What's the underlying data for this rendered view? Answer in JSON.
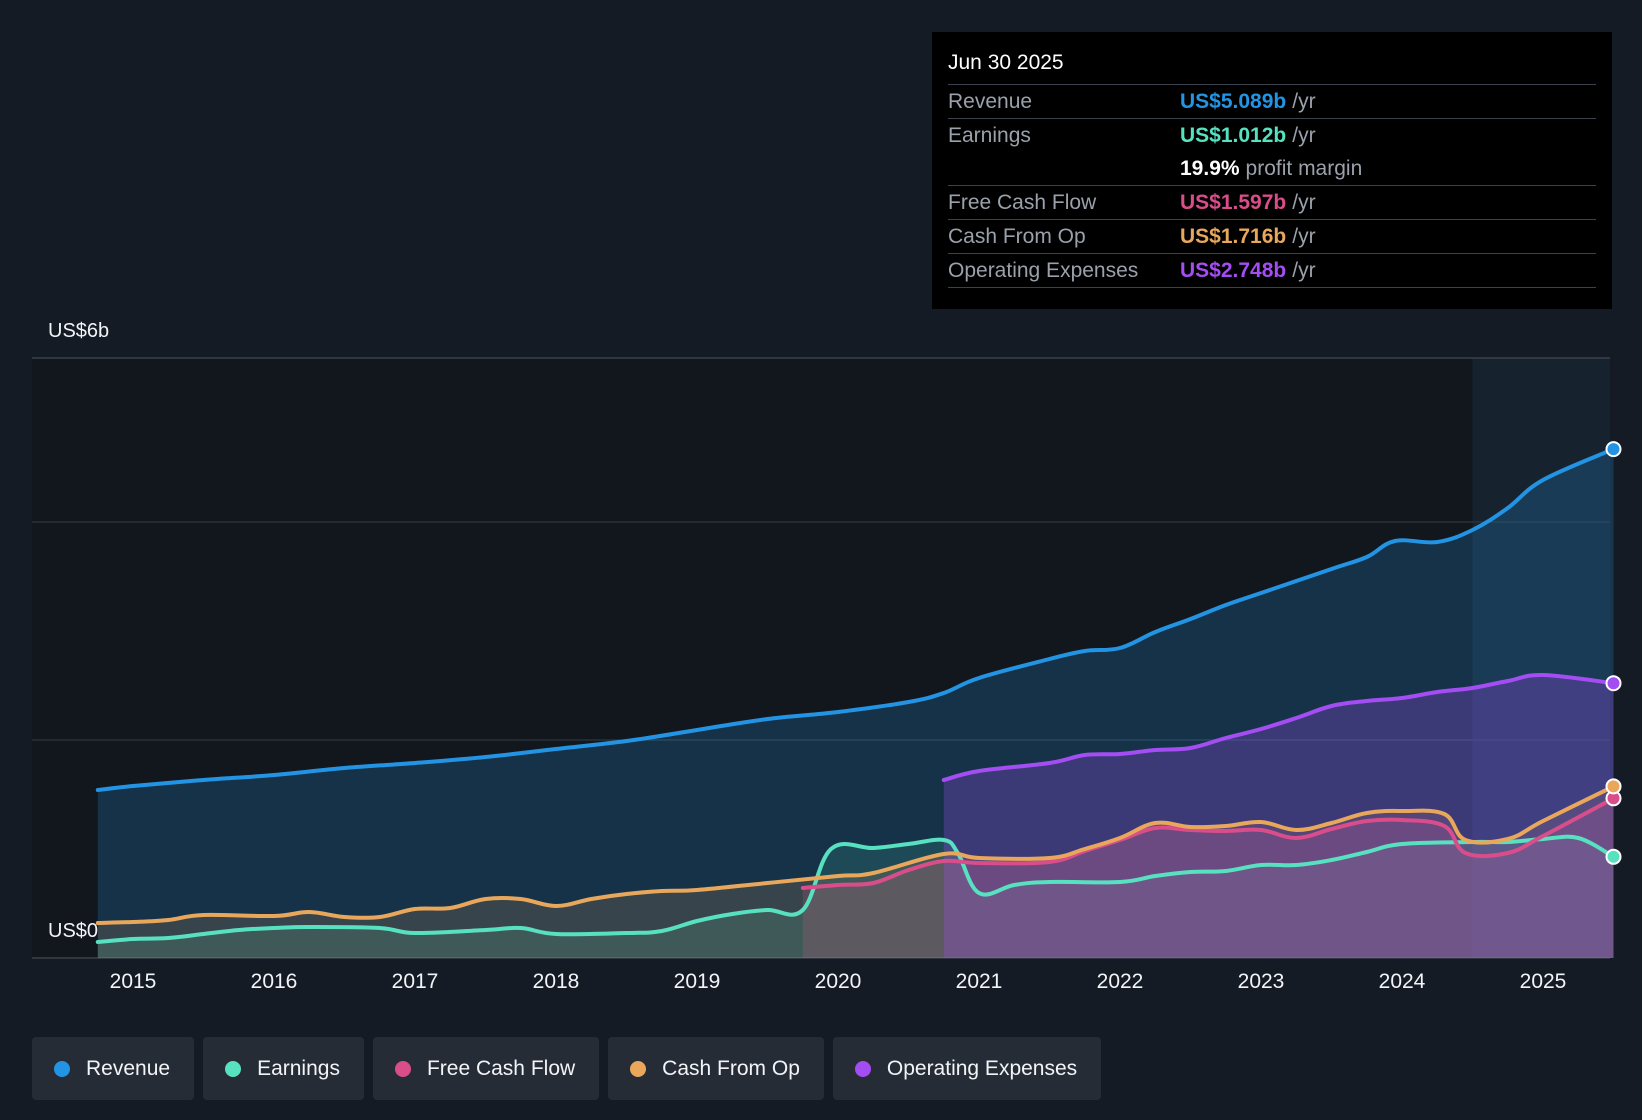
{
  "chart_data": {
    "type": "line",
    "title": "",
    "y_axis": {
      "label_top": "US$6b",
      "label_bottom": "US$0",
      "ylim": [
        0,
        6
      ]
    },
    "x_ticks": [
      "2015",
      "2016",
      "2017",
      "2018",
      "2019",
      "2020",
      "2021",
      "2022",
      "2023",
      "2024",
      "2025"
    ],
    "highlight_start": "2024.5",
    "series": [
      {
        "name": "Revenue",
        "key": "revenue",
        "color": "#2394e3",
        "points": [
          [
            2014.75,
            1.68
          ],
          [
            2015,
            1.72
          ],
          [
            2015.5,
            1.78
          ],
          [
            2016,
            1.83
          ],
          [
            2016.5,
            1.9
          ],
          [
            2017,
            1.95
          ],
          [
            2017.5,
            2.01
          ],
          [
            2018,
            2.09
          ],
          [
            2018.5,
            2.17
          ],
          [
            2019,
            2.28
          ],
          [
            2019.5,
            2.39
          ],
          [
            2020,
            2.46
          ],
          [
            2020.5,
            2.56
          ],
          [
            2020.75,
            2.65
          ],
          [
            2021,
            2.8
          ],
          [
            2021.5,
            2.99
          ],
          [
            2021.75,
            3.07
          ],
          [
            2022.0,
            3.1
          ],
          [
            2022.25,
            3.26
          ],
          [
            2022.5,
            3.39
          ],
          [
            2022.75,
            3.53
          ],
          [
            2023,
            3.65
          ],
          [
            2023.5,
            3.89
          ],
          [
            2023.75,
            4.01
          ],
          [
            2023.95,
            4.17
          ],
          [
            2024.25,
            4.16
          ],
          [
            2024.5,
            4.28
          ],
          [
            2024.75,
            4.5
          ],
          [
            2025,
            4.78
          ],
          [
            2025.5,
            5.089
          ]
        ]
      },
      {
        "name": "Earnings",
        "key": "earnings",
        "color": "#58e1c1",
        "points": [
          [
            2014.75,
            0.16
          ],
          [
            2015,
            0.19
          ],
          [
            2015.25,
            0.2
          ],
          [
            2015.5,
            0.24
          ],
          [
            2015.75,
            0.28
          ],
          [
            2016,
            0.3
          ],
          [
            2016.25,
            0.31
          ],
          [
            2016.75,
            0.3
          ],
          [
            2017,
            0.25
          ],
          [
            2017.5,
            0.28
          ],
          [
            2017.75,
            0.3
          ],
          [
            2018,
            0.24
          ],
          [
            2018.5,
            0.25
          ],
          [
            2018.75,
            0.27
          ],
          [
            2019,
            0.37
          ],
          [
            2019.25,
            0.44
          ],
          [
            2019.5,
            0.48
          ],
          [
            2019.75,
            0.48
          ],
          [
            2019.95,
            1.09
          ],
          [
            2020.25,
            1.1
          ],
          [
            2020.5,
            1.14
          ],
          [
            2020.75,
            1.18
          ],
          [
            2020.85,
            1.05
          ],
          [
            2021,
            0.65
          ],
          [
            2021.25,
            0.73
          ],
          [
            2021.5,
            0.76
          ],
          [
            2022,
            0.76
          ],
          [
            2022.25,
            0.82
          ],
          [
            2022.5,
            0.86
          ],
          [
            2022.75,
            0.87
          ],
          [
            2023,
            0.93
          ],
          [
            2023.25,
            0.93
          ],
          [
            2023.5,
            0.98
          ],
          [
            2023.75,
            1.06
          ],
          [
            2024,
            1.14
          ],
          [
            2024.5,
            1.16
          ],
          [
            2024.75,
            1.16
          ],
          [
            2025,
            1.19
          ],
          [
            2025.25,
            1.2
          ],
          [
            2025.5,
            1.012
          ]
        ]
      },
      {
        "name": "Free Cash Flow",
        "key": "fcf",
        "color": "#d94d8a",
        "points": [
          [
            2019.75,
            0.7
          ],
          [
            2020,
            0.73
          ],
          [
            2020.25,
            0.75
          ],
          [
            2020.5,
            0.88
          ],
          [
            2020.75,
            0.97
          ],
          [
            2021,
            0.95
          ],
          [
            2021.5,
            0.96
          ],
          [
            2021.75,
            1.07
          ],
          [
            2022,
            1.18
          ],
          [
            2022.25,
            1.3
          ],
          [
            2022.5,
            1.28
          ],
          [
            2022.75,
            1.27
          ],
          [
            2023,
            1.28
          ],
          [
            2023.25,
            1.2
          ],
          [
            2023.5,
            1.29
          ],
          [
            2023.75,
            1.37
          ],
          [
            2024,
            1.38
          ],
          [
            2024.3,
            1.32
          ],
          [
            2024.45,
            1.05
          ],
          [
            2024.75,
            1.05
          ],
          [
            2025,
            1.22
          ],
          [
            2025.5,
            1.597
          ]
        ]
      },
      {
        "name": "Cash From Op",
        "key": "cfo",
        "color": "#e9a75c",
        "points": [
          [
            2014.75,
            0.35
          ],
          [
            2015,
            0.36
          ],
          [
            2015.25,
            0.38
          ],
          [
            2015.5,
            0.43
          ],
          [
            2016,
            0.42
          ],
          [
            2016.25,
            0.46
          ],
          [
            2016.5,
            0.41
          ],
          [
            2016.75,
            0.41
          ],
          [
            2017,
            0.49
          ],
          [
            2017.25,
            0.5
          ],
          [
            2017.5,
            0.59
          ],
          [
            2017.75,
            0.59
          ],
          [
            2018,
            0.52
          ],
          [
            2018.25,
            0.59
          ],
          [
            2018.5,
            0.64
          ],
          [
            2018.75,
            0.67
          ],
          [
            2019,
            0.68
          ],
          [
            2019.5,
            0.75
          ],
          [
            2020,
            0.82
          ],
          [
            2020.25,
            0.85
          ],
          [
            2020.75,
            1.04
          ],
          [
            2021,
            1.0
          ],
          [
            2021.5,
            1.0
          ],
          [
            2021.75,
            1.09
          ],
          [
            2022,
            1.2
          ],
          [
            2022.25,
            1.35
          ],
          [
            2022.5,
            1.31
          ],
          [
            2022.75,
            1.32
          ],
          [
            2023,
            1.36
          ],
          [
            2023.25,
            1.28
          ],
          [
            2023.5,
            1.35
          ],
          [
            2023.75,
            1.45
          ],
          [
            2024,
            1.47
          ],
          [
            2024.3,
            1.44
          ],
          [
            2024.45,
            1.18
          ],
          [
            2024.75,
            1.19
          ],
          [
            2025,
            1.37
          ],
          [
            2025.5,
            1.716
          ]
        ]
      },
      {
        "name": "Operating Expenses",
        "key": "opex",
        "color": "#a34df2",
        "points": [
          [
            2020.75,
            1.78
          ],
          [
            2021,
            1.87
          ],
          [
            2021.5,
            1.95
          ],
          [
            2021.75,
            2.03
          ],
          [
            2022,
            2.04
          ],
          [
            2022.25,
            2.08
          ],
          [
            2022.5,
            2.1
          ],
          [
            2022.75,
            2.2
          ],
          [
            2023,
            2.29
          ],
          [
            2023.25,
            2.4
          ],
          [
            2023.5,
            2.52
          ],
          [
            2023.75,
            2.57
          ],
          [
            2024,
            2.6
          ],
          [
            2024.25,
            2.66
          ],
          [
            2024.5,
            2.7
          ],
          [
            2024.75,
            2.77
          ],
          [
            2025,
            2.83
          ],
          [
            2025.5,
            2.748
          ]
        ]
      }
    ]
  },
  "tooltip": {
    "date": "Jun 30 2025",
    "unit": "/yr",
    "revenue": {
      "label": "Revenue",
      "value": "US$5.089b",
      "color": "#2394e3"
    },
    "earnings": {
      "label": "Earnings",
      "value": "US$1.012b",
      "color": "#58e1c1"
    },
    "margin": {
      "value": "19.9%",
      "text": "profit margin"
    },
    "fcf": {
      "label": "Free Cash Flow",
      "value": "US$1.597b",
      "color": "#d94d8a"
    },
    "cfo": {
      "label": "Cash From Op",
      "value": "US$1.716b",
      "color": "#e9a75c"
    },
    "opex": {
      "label": "Operating Expenses",
      "value": "US$2.748b",
      "color": "#a34df2"
    }
  },
  "legend": [
    {
      "label": "Revenue",
      "color": "#2394e3"
    },
    {
      "label": "Earnings",
      "color": "#58e1c1"
    },
    {
      "label": "Free Cash Flow",
      "color": "#d94d8a"
    },
    {
      "label": "Cash From Op",
      "color": "#e9a75c"
    },
    {
      "label": "Operating Expenses",
      "color": "#a34df2"
    }
  ]
}
